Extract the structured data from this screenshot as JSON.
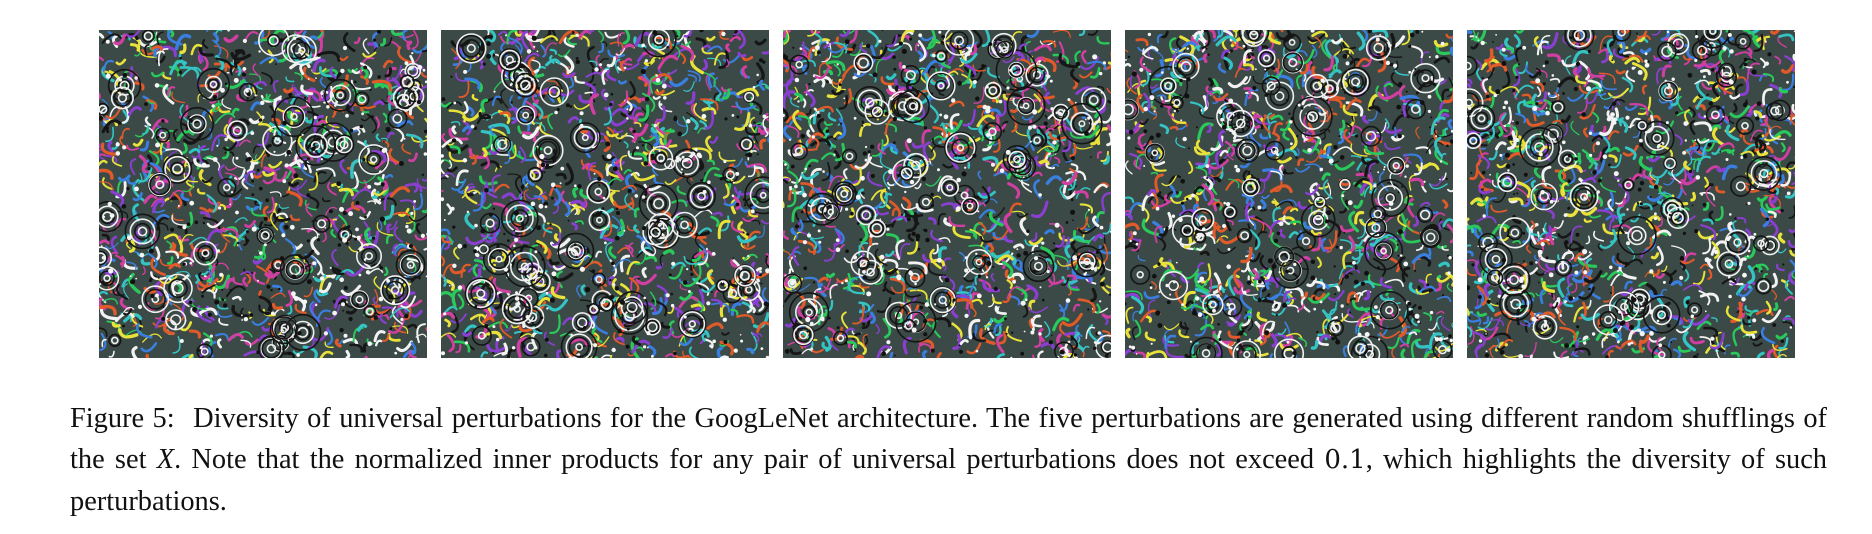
{
  "figure": {
    "label": "Figure 5:",
    "caption_part1": "Diversity of universal perturbations for the GoogLeNet architecture. The five perturbations are generated using different random shufflings of the set ",
    "set_symbol": "X",
    "caption_part2": ". Note that the normalized inner products for any pair of universal perturbations does not exceed ",
    "threshold": "0.1",
    "caption_part3": ", which highlights the diversity of such perturbations."
  },
  "panels": [
    {
      "name": "perturbation-1"
    },
    {
      "name": "perturbation-2"
    },
    {
      "name": "perturbation-3"
    },
    {
      "name": "perturbation-4"
    },
    {
      "name": "perturbation-5"
    }
  ],
  "palette": [
    "#e8e23a",
    "#2ac95c",
    "#d23fa3",
    "#3a7fe0",
    "#f2f2f2",
    "#161616",
    "#e05a2a",
    "#35c4c4",
    "#8b3fd1"
  ]
}
